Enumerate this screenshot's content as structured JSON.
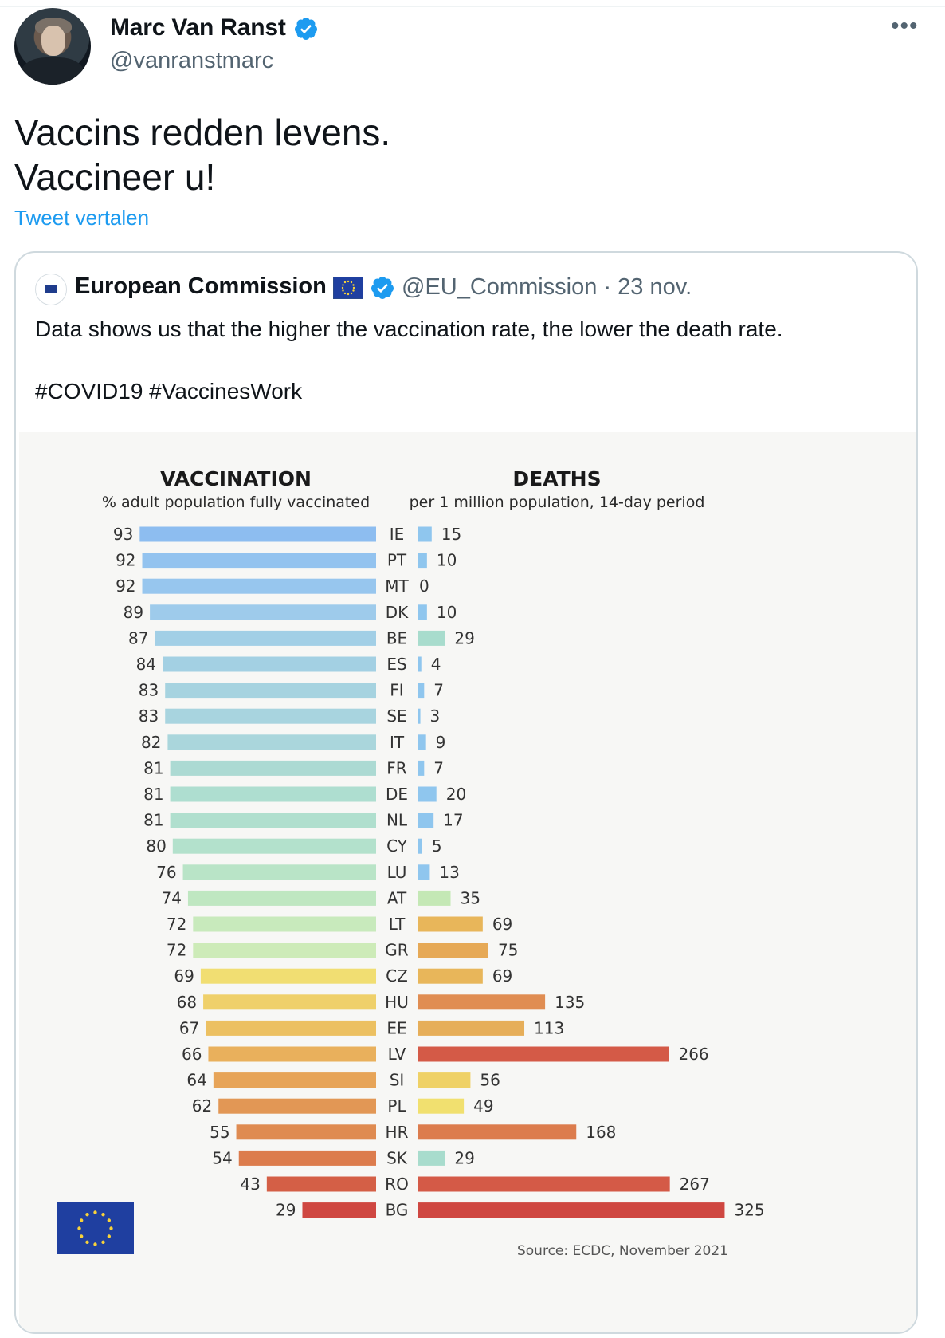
{
  "tweet": {
    "author_name": "Marc Van Ranst",
    "author_handle": "@vanranstmarc",
    "more_icon": "more-horizontal-icon",
    "text_line1": "Vaccins redden levens.",
    "text_line2": "Vaccineer u!",
    "translate_label": "Tweet vertalen",
    "accent_color": "#1d9bf0"
  },
  "quoted": {
    "author_name": "European Commission",
    "handle_and_date": "@EU_Commission · 23 nov.",
    "text": "Data shows us that the higher the vaccination rate, the lower the death rate.",
    "hashtags": "#COVID19 #VaccinesWork"
  },
  "chart_data": {
    "type": "bar",
    "left_panel": {
      "title": "VACCINATION",
      "subtitle": "% adult population fully vaccinated"
    },
    "right_panel": {
      "title": "DEATHS",
      "subtitle": "per 1 million population, 14-day period"
    },
    "categories": [
      "IE",
      "PT",
      "MT",
      "DK",
      "BE",
      "ES",
      "FI",
      "SE",
      "IT",
      "FR",
      "DE",
      "NL",
      "CY",
      "LU",
      "AT",
      "LT",
      "GR",
      "CZ",
      "HU",
      "EE",
      "LV",
      "SI",
      "PL",
      "HR",
      "SK",
      "RO",
      "BG"
    ],
    "series": [
      {
        "name": "VACCINATION",
        "values": [
          93,
          92,
          92,
          89,
          87,
          84,
          83,
          83,
          82,
          81,
          81,
          81,
          80,
          76,
          74,
          72,
          72,
          69,
          68,
          67,
          66,
          64,
          62,
          55,
          54,
          43,
          29
        ]
      },
      {
        "name": "DEATHS",
        "values": [
          15,
          10,
          0,
          10,
          29,
          4,
          7,
          3,
          9,
          7,
          20,
          17,
          5,
          13,
          35,
          69,
          75,
          69,
          135,
          113,
          266,
          56,
          49,
          168,
          29,
          267,
          325
        ]
      }
    ],
    "vaccination_colors": [
      "#8dbdf0",
      "#93c3ef",
      "#97c6ee",
      "#9ecbeb",
      "#a2cfe6",
      "#a3d0e3",
      "#a6d3e0",
      "#a8d4df",
      "#aad6dc",
      "#acdad3",
      "#aeded0",
      "#b0dfce",
      "#b3e1cc",
      "#b9e4c7",
      "#bfe7c1",
      "#c8eabc",
      "#cdebb8",
      "#f1de72",
      "#efd06a",
      "#ecc061",
      "#e9b05c",
      "#e7a458",
      "#e29755",
      "#df8b51",
      "#dc7c4d",
      "#d45f46",
      "#cf4741"
    ],
    "death_colors": [
      "#8fc6ee",
      "#8fc6ee",
      "#8fc6ee",
      "#8fc6ee",
      "#a8dccd",
      "#8fc6ee",
      "#8fc6ee",
      "#8fc6ee",
      "#8fc6ee",
      "#8fc6ee",
      "#8fc6ee",
      "#8fc6ee",
      "#8fc6ee",
      "#8fc6ee",
      "#c4e8b5",
      "#e8b65a",
      "#e6a956",
      "#e8b65a",
      "#e08d52",
      "#e6ae59",
      "#d45a47",
      "#efd166",
      "#f1e06f",
      "#dc7c4d",
      "#a8dccd",
      "#d45a47",
      "#cf4741"
    ],
    "source": "Source: ECDC, November 2021"
  }
}
